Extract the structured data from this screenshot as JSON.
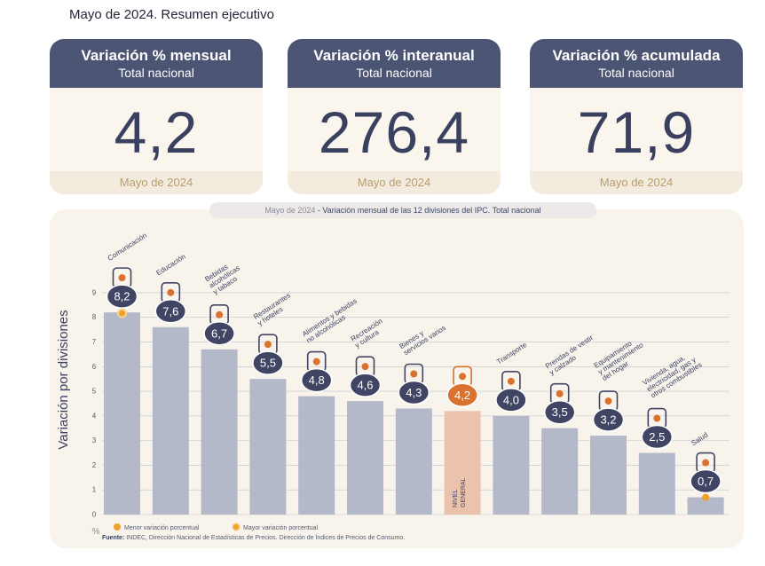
{
  "page_title": "Mayo de 2024. Resumen ejecutivo",
  "cards": [
    {
      "title": "Variación % mensual",
      "subtitle": "Total nacional",
      "value": "4,2",
      "date": "Mayo de 2024"
    },
    {
      "title": "Variación % interanual",
      "subtitle": "Total nacional",
      "value": "276,4",
      "date": "Mayo de 2024"
    },
    {
      "title": "Variación % acumulada",
      "subtitle": "Total nacional",
      "value": "71,9",
      "date": "Mayo de 2024"
    }
  ],
  "chart_caption_date": "Mayo de 2024",
  "chart_caption_text": " - Variación mensual de las 12 divisiones del IPC. Total nacional",
  "footer_label": "Fuente:",
  "footer_text": " INDEC, Dirección Nacional de Estadísticas de Precios. Dirección de Índices de Precios de Consumo.",
  "colors": {
    "bar": "#b3b9c8",
    "highlight_bar": "#ebc3ac",
    "badge": "#3f4563",
    "highlight_badge": "#d9722e",
    "accent": "#f0a12a",
    "grid": "#bfc3cc"
  },
  "chart_data": {
    "type": "bar",
    "ylabel": "Variación por divisiones",
    "y_unit": "%",
    "ylim": [
      0,
      9.5
    ],
    "yticks": [
      0,
      1,
      2,
      3,
      4,
      5,
      6,
      7,
      8,
      9
    ],
    "grid": true,
    "categories": [
      "Comunicación",
      "Educación",
      "Bebidas alcohólicas y tabaco",
      "Restaurantes y hoteles",
      "Alimentos y bebidas no alcohólicas",
      "Recreación y cultura",
      "Bienes y servicios varios",
      "NIVEL GENERAL",
      "Transporte",
      "Prendas de vestir y calzado",
      "Equipamiento y mantenimiento del hogar",
      "Vivienda, agua, electricidad, gas y otros combustibles",
      "Salud"
    ],
    "values": [
      8.2,
      7.6,
      6.7,
      5.5,
      4.8,
      4.6,
      4.3,
      4.2,
      4.0,
      3.5,
      3.2,
      2.5,
      0.7
    ],
    "value_labels": [
      "8,2",
      "7,6",
      "6,7",
      "5,5",
      "4,8",
      "4,6",
      "4,3",
      "4,2",
      "4,0",
      "3,5",
      "3,2",
      "2,5",
      "0,7"
    ],
    "category_labels": [
      [
        "Comunicación"
      ],
      [
        "Educación"
      ],
      [
        "Bebidas",
        "alcohólicas",
        "y tabaco"
      ],
      [
        "Restaurantes",
        "y hoteles"
      ],
      [
        "Alimentos y bebidas",
        "no alcohólicas"
      ],
      [
        "Recreación",
        "y cultura"
      ],
      [
        "Bienes y",
        "servicios varios"
      ],
      [
        "NIVEL",
        "GENERAL"
      ],
      [
        "Transporte"
      ],
      [
        "Prendas de vestir",
        "y calzado"
      ],
      [
        "Equipamiento",
        "y mantenimiento",
        "del hogar"
      ],
      [
        "Vivienda, agua,",
        "electricidad, gas y",
        "otros combustibles"
      ],
      [
        "Salud"
      ]
    ],
    "highlight_index": 7,
    "max_marker_index": 0,
    "min_marker_index": 12,
    "legend": [
      {
        "label": "Menor variación porcentual",
        "marker": "orange-dot"
      },
      {
        "label": "Mayor variación porcentual",
        "marker": "ringed-dot"
      }
    ],
    "legend_position": "bottom-left",
    "icons": [
      "phone-icon",
      "book-icon",
      "drinks-icon",
      "dining-icon",
      "groceries-icon",
      "leisure-icon",
      "scissors-icon",
      "basket-icon",
      "bus-icon",
      "clothing-icon",
      "appliance-icon",
      "lightbulb-icon",
      "medical-cross-icon"
    ]
  }
}
